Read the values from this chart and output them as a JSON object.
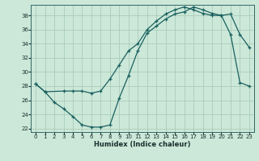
{
  "xlabel": "Humidex (Indice chaleur)",
  "bg_color": "#cce8d8",
  "grid_color": "#aaccbb",
  "line_color": "#1a6060",
  "xlim": [
    -0.5,
    23.5
  ],
  "ylim": [
    21.5,
    39.5
  ],
  "xticks": [
    0,
    1,
    2,
    3,
    4,
    5,
    6,
    7,
    8,
    9,
    10,
    11,
    12,
    13,
    14,
    15,
    16,
    17,
    18,
    19,
    20,
    21,
    22,
    23
  ],
  "yticks": [
    22,
    24,
    26,
    28,
    30,
    32,
    34,
    36,
    38
  ],
  "curve1_x": [
    0,
    1,
    2,
    3,
    4,
    5,
    6,
    7,
    8,
    9,
    10,
    11,
    12,
    13,
    14,
    15,
    16,
    17,
    18,
    19,
    20,
    21,
    22,
    23
  ],
  "curve1_y": [
    28.3,
    27.2,
    25.7,
    24.8,
    23.7,
    22.5,
    22.2,
    22.2,
    22.5,
    26.3,
    29.5,
    33.0,
    35.5,
    36.5,
    37.5,
    38.2,
    38.5,
    39.2,
    38.8,
    38.3,
    38.0,
    38.2,
    35.3,
    33.5
  ],
  "curve2_x": [
    0,
    1,
    3,
    4,
    5,
    6,
    7,
    8,
    9,
    10,
    11,
    12,
    13,
    14,
    15,
    16,
    17,
    18,
    19,
    20,
    21,
    22,
    23
  ],
  "curve2_y": [
    28.3,
    27.2,
    27.3,
    27.3,
    27.3,
    27.0,
    27.3,
    29.0,
    31.0,
    33.0,
    34.0,
    36.0,
    37.2,
    38.2,
    38.8,
    39.2,
    38.8,
    38.3,
    38.0,
    38.0,
    35.3,
    28.5,
    28.0
  ]
}
